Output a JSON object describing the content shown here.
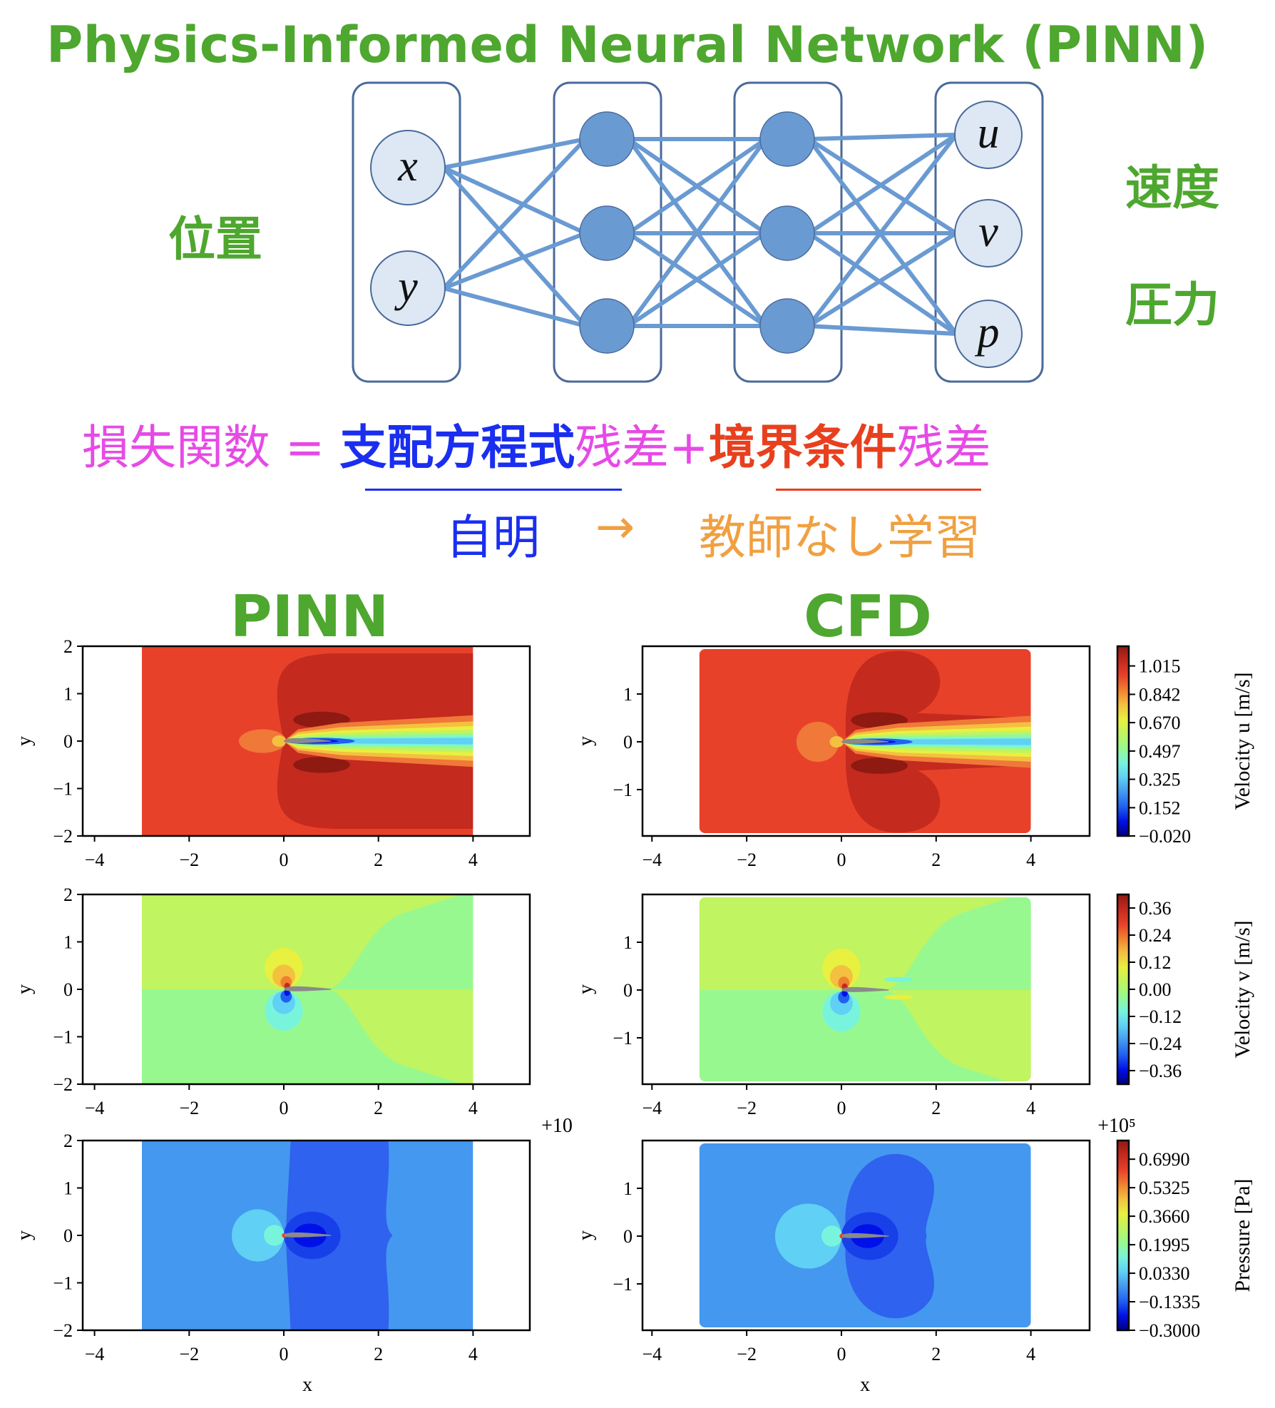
{
  "title": "Physics-Informed Neural Network (PINN)",
  "network": {
    "input_group_label": "位置",
    "output_labels": [
      "速度",
      "圧力"
    ],
    "inputs": [
      "x",
      "y"
    ],
    "outputs": [
      "u",
      "v",
      "p"
    ],
    "hidden_layers": 2,
    "nodes_per_hidden_layer": 3,
    "colors": {
      "edge": "#6a9ad2",
      "node": "#6a9ad2",
      "io_node": "#dde8f4",
      "box": "#4a6a9a"
    }
  },
  "loss": {
    "lhs": "損失関数",
    "equals": "=",
    "term1": "支配方程式",
    "residual1": "残差",
    "plus": "+",
    "term2": "境界条件",
    "residual2": "残差",
    "trivial": "自明",
    "arrow": "→",
    "result": "教師なし学習"
  },
  "columns": [
    "PINN",
    "CFD"
  ],
  "chart_data": [
    {
      "type": "heatmap",
      "column": "PINN",
      "field": "u",
      "xlabel": "",
      "ylabel": "y",
      "xlim": [
        -4.25,
        5.2
      ],
      "ylim": [
        -2,
        2
      ],
      "xticks": [
        "−4",
        "−2",
        "0",
        "2",
        "4"
      ],
      "yticks": [
        "−2",
        "−1",
        "0",
        "1",
        "2"
      ],
      "offset": ""
    },
    {
      "type": "heatmap",
      "column": "CFD",
      "field": "u",
      "xlabel": "",
      "ylabel": "y",
      "xlim": [
        -4.2,
        5.24
      ],
      "ylim": [
        -1.97,
        2.0
      ],
      "xticks": [
        "−4",
        "−2",
        "0",
        "2",
        "4"
      ],
      "yticks": [
        "−1",
        "0",
        "1"
      ],
      "offset": "",
      "colorbar": {
        "label": "Velocity u [m/s]",
        "ticks": [
          "1.015",
          "0.842",
          "0.670",
          "0.497",
          "0.325",
          "0.152",
          "−0.020"
        ],
        "tick_values": [
          1.015,
          0.842,
          0.67,
          0.497,
          0.325,
          0.152,
          -0.02
        ],
        "range": [
          -0.02,
          1.135
        ]
      }
    },
    {
      "type": "heatmap",
      "column": "PINN",
      "field": "v",
      "xlabel": "",
      "ylabel": "y",
      "xlim": [
        -4.25,
        5.2
      ],
      "ylim": [
        -2,
        2
      ],
      "xticks": [
        "−4",
        "−2",
        "0",
        "2",
        "4"
      ],
      "yticks": [
        "−2",
        "−1",
        "0",
        "1",
        "2"
      ],
      "offset": ""
    },
    {
      "type": "heatmap",
      "column": "CFD",
      "field": "v",
      "xlabel": "",
      "ylabel": "y",
      "xlim": [
        -4.2,
        5.24
      ],
      "ylim": [
        -1.97,
        2.0
      ],
      "xticks": [
        "−4",
        "−2",
        "0",
        "2",
        "4"
      ],
      "yticks": [
        "−1",
        "0",
        "1"
      ],
      "offset": "",
      "colorbar": {
        "label": "Velocity v [m/s]",
        "ticks": [
          "0.36",
          "0.24",
          "0.12",
          "0.00",
          "−0.12",
          "−0.24",
          "−0.36"
        ],
        "tick_values": [
          0.36,
          0.24,
          0.12,
          0.0,
          -0.12,
          -0.24,
          -0.36
        ],
        "range": [
          -0.42,
          0.42
        ]
      }
    },
    {
      "type": "heatmap",
      "column": "PINN",
      "field": "p",
      "xlabel": "x",
      "ylabel": "y",
      "xlim": [
        -4.25,
        5.2
      ],
      "ylim": [
        -2,
        2
      ],
      "xticks": [
        "−4",
        "−2",
        "0",
        "2",
        "4"
      ],
      "yticks": [
        "−2",
        "−1",
        "0",
        "1",
        "2"
      ],
      "offset": "+10"
    },
    {
      "type": "heatmap",
      "column": "CFD",
      "field": "p",
      "xlabel": "x",
      "ylabel": "y",
      "xlim": [
        -4.2,
        5.24
      ],
      "ylim": [
        -1.97,
        2.0
      ],
      "xticks": [
        "−4",
        "−2",
        "0",
        "2",
        "4"
      ],
      "yticks": [
        "−1",
        "0",
        "1"
      ],
      "offset": "+10⁵",
      "colorbar": {
        "label": "Pressure [Pa]",
        "ticks": [
          "0.6990",
          "0.5325",
          "0.3660",
          "0.1995",
          "0.0330",
          "−0.1335",
          "−0.3000"
        ],
        "tick_values": [
          0.699,
          0.5325,
          0.366,
          0.1995,
          0.033,
          -0.1335,
          -0.3
        ],
        "range": [
          -0.3,
          0.808
        ]
      }
    }
  ],
  "colormap": [
    "#00007f",
    "#0010e8",
    "#2060f0",
    "#4498f0",
    "#60d0f4",
    "#78f4dc",
    "#98f890",
    "#c0f460",
    "#e8f040",
    "#f4c040",
    "#f08030",
    "#e8402a",
    "#c42a1e",
    "#8e1a12"
  ]
}
